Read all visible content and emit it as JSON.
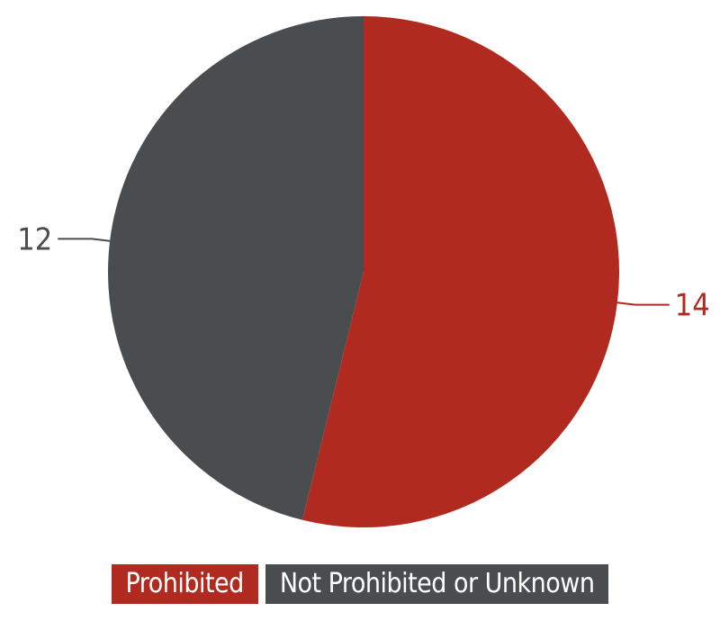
{
  "chart_data": {
    "type": "pie",
    "title": "",
    "slices": [
      {
        "label": "Prohibited",
        "value": 14,
        "color": "#b02a20"
      },
      {
        "label": "Not Prohibited or Unknown",
        "value": 12,
        "color": "#4a4d4f"
      }
    ],
    "start_angle_deg": 0,
    "direction": "clockwise",
    "data_labels": "outside",
    "legend_position": "bottom"
  }
}
